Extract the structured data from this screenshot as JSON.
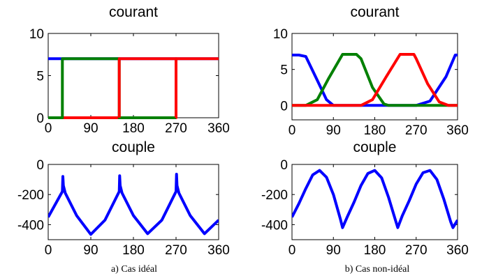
{
  "figure": {
    "captions": [
      "a) Cas idéal",
      "b) Cas non-idéal"
    ]
  },
  "chart_data": [
    {
      "id": "a_courant",
      "type": "line",
      "title": "courant",
      "xlabel": "",
      "ylabel": "",
      "xlim": [
        0,
        360
      ],
      "ylim": [
        0,
        10
      ],
      "xticks": [
        0,
        90,
        180,
        270,
        360
      ],
      "yticks": [
        0,
        5,
        10
      ],
      "grid": false,
      "line_width": 4,
      "series": [
        {
          "color": "#0000ff",
          "x": [
            0,
            360
          ],
          "y": [
            7,
            7
          ]
        },
        {
          "color": "#ff0000",
          "x": [
            0,
            270,
            270,
            360
          ],
          "y": [
            0,
            0,
            7,
            7
          ]
        },
        {
          "color": "#008000",
          "x": [
            0,
            30,
            30,
            150,
            150,
            270,
            270
          ],
          "y": [
            0,
            0,
            7,
            7,
            0,
            0,
            0
          ]
        },
        {
          "color": "#ff0000",
          "x": [
            150,
            150,
            270,
            270
          ],
          "y": [
            0,
            7,
            7,
            0
          ]
        }
      ]
    },
    {
      "id": "b_courant",
      "type": "line",
      "title": "courant",
      "xlabel": "",
      "ylabel": "",
      "xlim": [
        0,
        360
      ],
      "ylim": [
        -2,
        10
      ],
      "xticks": [
        0,
        90,
        180,
        270,
        360
      ],
      "yticks": [
        0,
        5,
        10
      ],
      "grid": false,
      "line_width": 4,
      "series": [
        {
          "color": "#0000ff",
          "x": [
            0,
            15,
            30,
            55,
            75,
            90,
            150,
            270,
            300,
            335,
            355,
            360
          ],
          "y": [
            7,
            7,
            6.8,
            3.5,
            0.8,
            0,
            0,
            0,
            0.6,
            4,
            7,
            7
          ]
        },
        {
          "color": "#008000",
          "x": [
            0,
            30,
            55,
            80,
            110,
            140,
            150,
            175,
            200,
            210,
            360
          ],
          "y": [
            0,
            0,
            0.8,
            3.8,
            7.1,
            7.1,
            6.5,
            2.5,
            0.2,
            0,
            0
          ]
        },
        {
          "color": "#ff0000",
          "x": [
            0,
            150,
            175,
            205,
            235,
            265,
            270,
            295,
            320,
            340,
            360
          ],
          "y": [
            0,
            0,
            0.8,
            4,
            7.1,
            7.1,
            6.5,
            3,
            0.5,
            0,
            0
          ]
        }
      ]
    },
    {
      "id": "a_couple",
      "type": "line",
      "title": "couple",
      "xlabel": "",
      "ylabel": "",
      "xlim": [
        0,
        360
      ],
      "ylim": [
        -500,
        0
      ],
      "xticks": [
        0,
        90,
        180,
        270,
        360
      ],
      "yticks": [
        0,
        -200,
        -400
      ],
      "grid": false,
      "line_width": 4,
      "series": [
        {
          "color": "#0000ff",
          "x": [
            0,
            30,
            31,
            32,
            36,
            60,
            90,
            120,
            150,
            151,
            152,
            156,
            180,
            210,
            240,
            270,
            271,
            272,
            276,
            300,
            330,
            360
          ],
          "y": [
            -350,
            -180,
            -80,
            -140,
            -190,
            -340,
            -465,
            -370,
            -180,
            -75,
            -140,
            -190,
            -340,
            -460,
            -370,
            -180,
            -65,
            -140,
            -190,
            -340,
            -460,
            -370
          ]
        }
      ]
    },
    {
      "id": "b_couple",
      "type": "line",
      "title": "couple",
      "xlabel": "",
      "ylabel": "",
      "xlim": [
        0,
        360
      ],
      "ylim": [
        -500,
        0
      ],
      "xticks": [
        0,
        90,
        180,
        270,
        360
      ],
      "yticks": [
        0,
        -200,
        -400
      ],
      "grid": false,
      "line_width": 4,
      "series": [
        {
          "color": "#0000ff",
          "x": [
            0,
            15,
            30,
            45,
            60,
            75,
            90,
            105,
            110,
            120,
            135,
            150,
            165,
            180,
            195,
            210,
            225,
            230,
            240,
            255,
            270,
            285,
            300,
            315,
            330,
            345,
            350,
            360
          ],
          "y": [
            -350,
            -260,
            -160,
            -70,
            -40,
            -85,
            -200,
            -360,
            -420,
            -350,
            -250,
            -140,
            -60,
            -40,
            -90,
            -220,
            -370,
            -420,
            -340,
            -240,
            -130,
            -55,
            -40,
            -100,
            -230,
            -380,
            -420,
            -370
          ]
        }
      ]
    }
  ]
}
